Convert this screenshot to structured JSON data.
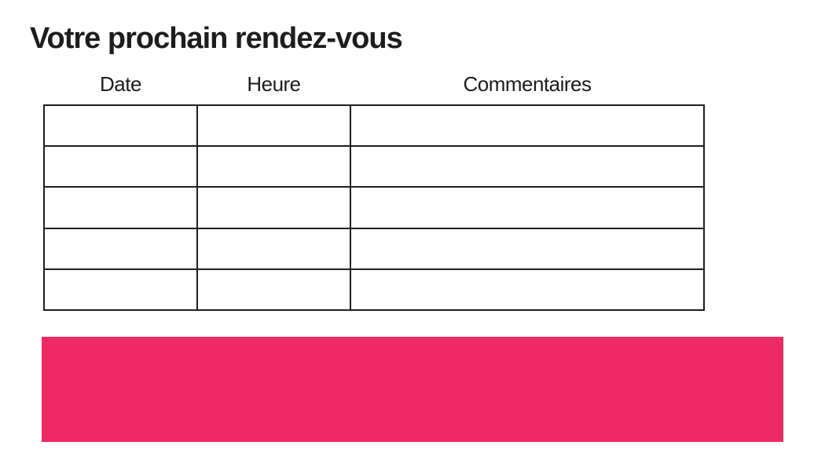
{
  "page": {
    "title": "Votre prochain rendez-vous"
  },
  "table": {
    "headers": [
      "Date",
      "Heure",
      "Commentaires"
    ],
    "rows": [
      [
        "",
        "",
        ""
      ],
      [
        "",
        "",
        ""
      ],
      [
        "",
        "",
        ""
      ],
      [
        "",
        "",
        ""
      ],
      [
        "",
        "",
        ""
      ]
    ]
  },
  "banner": {
    "text": "",
    "color": "#ED2A64"
  },
  "colors": {
    "accent_pink": "#ED2A64",
    "table_border": "#1f1f1f",
    "text": "#1d1d1b",
    "background": "#ffffff"
  }
}
